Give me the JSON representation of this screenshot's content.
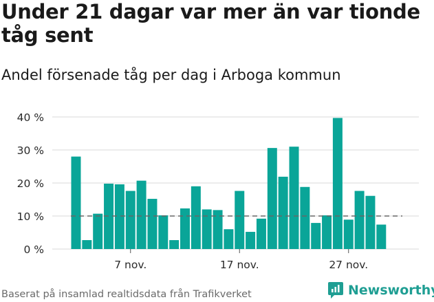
{
  "title": "Under 21 dagar var mer än var tionde tåg sent",
  "subtitle": "Andel försenade tåg per dag i Arboga kommun",
  "source": "Baserat på insamlad realtidsdata från Trafikverket",
  "brand": "Newsworthy",
  "colors": {
    "bar": "#0aa598",
    "grid": "#d9d9d9",
    "reference": "#666666",
    "brand": "#1f9e93"
  },
  "chart_data": {
    "type": "bar",
    "y_tick_labels": [
      "0 %",
      "10 %",
      "20 %",
      "30 %",
      "40 %"
    ],
    "ylim": [
      0,
      40
    ],
    "x_tick_labels": [
      {
        "label": "7 nov.",
        "index": 5
      },
      {
        "label": "17 nov.",
        "index": 15
      },
      {
        "label": "27 nov.",
        "index": 25
      }
    ],
    "reference_line": 10,
    "grid": true,
    "values": [
      28,
      2.7,
      10.7,
      19.8,
      19.6,
      17.6,
      20.7,
      15.2,
      10.2,
      2.7,
      12.3,
      19,
      12,
      11.8,
      6,
      17.6,
      5.2,
      9.2,
      30.6,
      21.9,
      31,
      18.8,
      7.9,
      10.2,
      39.7,
      8.9,
      17.6,
      16.1,
      7.4
    ]
  }
}
